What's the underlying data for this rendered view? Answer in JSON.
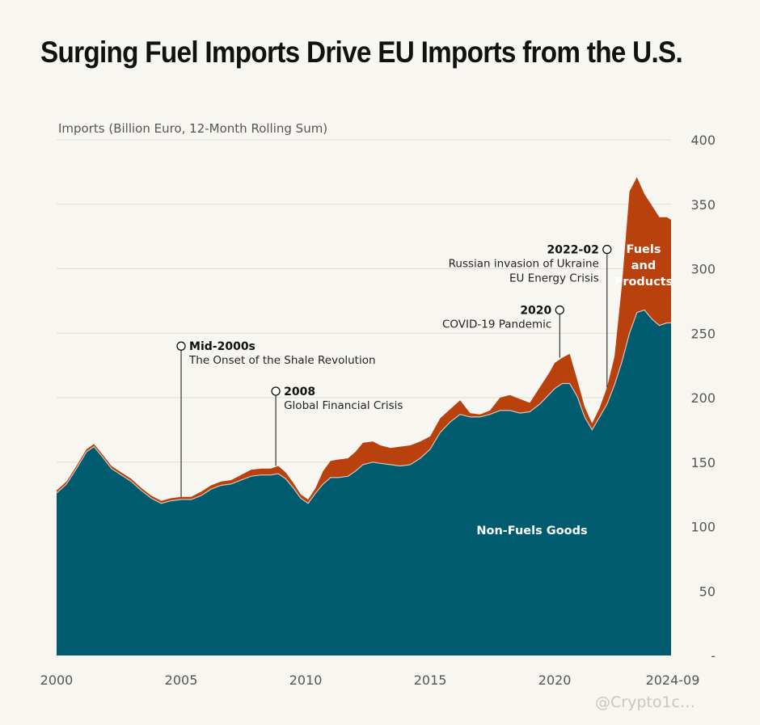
{
  "title": "Surging Fuel Imports Drive EU Imports from the U.S.",
  "watermark": "@Crypto1c…",
  "chart_data": {
    "type": "area",
    "stacked": true,
    "ylabel": "Imports (Billion Euro, 12-Month Rolling Sum)",
    "ylim": [
      0,
      400
    ],
    "y_ticks": [
      {
        "value": 0,
        "label": "-"
      },
      {
        "value": 50,
        "label": "50"
      },
      {
        "value": 100,
        "label": "100"
      },
      {
        "value": 150,
        "label": "150"
      },
      {
        "value": 200,
        "label": "200"
      },
      {
        "value": 250,
        "label": "250"
      },
      {
        "value": 300,
        "label": "300"
      },
      {
        "value": 350,
        "label": "350"
      },
      {
        "value": 400,
        "label": "400"
      }
    ],
    "x_ticks": [
      {
        "value": 2000,
        "label": "2000"
      },
      {
        "value": 2005,
        "label": "2005"
      },
      {
        "value": 2010,
        "label": "2010"
      },
      {
        "value": 2015,
        "label": "2015"
      },
      {
        "value": 2020,
        "label": "2020"
      },
      {
        "value": 2024.67,
        "label": "2024-09"
      }
    ],
    "xlim": [
      2000,
      2024.67
    ],
    "grid": true,
    "x": [
      2000.0,
      2000.4,
      2000.8,
      2001.2,
      2001.5,
      2001.8,
      2002.2,
      2002.6,
      2003.0,
      2003.4,
      2003.8,
      2004.2,
      2004.6,
      2005.0,
      2005.4,
      2005.8,
      2006.2,
      2006.6,
      2007.0,
      2007.4,
      2007.8,
      2008.2,
      2008.6,
      2008.9,
      2009.2,
      2009.5,
      2009.8,
      2010.1,
      2010.4,
      2010.7,
      2011.0,
      2011.3,
      2011.7,
      2012.0,
      2012.3,
      2012.7,
      2013.0,
      2013.4,
      2013.8,
      2014.2,
      2014.6,
      2015.0,
      2015.4,
      2015.8,
      2016.2,
      2016.6,
      2017.0,
      2017.4,
      2017.8,
      2018.2,
      2018.6,
      2019.0,
      2019.4,
      2019.8,
      2020.0,
      2020.3,
      2020.6,
      2020.9,
      2021.2,
      2021.5,
      2021.8,
      2022.1,
      2022.4,
      2022.7,
      2023.0,
      2023.3,
      2023.6,
      2023.9,
      2024.2,
      2024.5,
      2024.67
    ],
    "series": [
      {
        "name": "Non-Fuels Goods",
        "color": "#005b6e",
        "values": [
          126,
          133,
          145,
          158,
          162,
          155,
          145,
          140,
          135,
          128,
          122,
          118,
          120,
          121,
          121,
          124,
          129,
          132,
          133,
          136,
          139,
          140,
          140,
          141,
          137,
          130,
          122,
          118,
          126,
          133,
          138,
          138,
          139,
          143,
          148,
          150,
          149,
          148,
          147,
          148,
          153,
          160,
          173,
          181,
          187,
          185,
          185,
          187,
          190,
          190,
          188,
          189,
          195,
          203,
          207,
          211,
          211,
          201,
          185,
          175,
          185,
          195,
          210,
          228,
          250,
          266,
          268,
          261,
          256,
          258,
          258
        ]
      },
      {
        "name": "Fuels and Products",
        "color": "#b9410d",
        "values": [
          2,
          2,
          2,
          2,
          2,
          2,
          2,
          2,
          2,
          2,
          2,
          2,
          2,
          2,
          2,
          3,
          3,
          3,
          3,
          4,
          5,
          5,
          5,
          6,
          5,
          4,
          3,
          3,
          4,
          10,
          13,
          14,
          14,
          15,
          17,
          16,
          14,
          13,
          15,
          15,
          13,
          10,
          11,
          10,
          11,
          3,
          2,
          3,
          10,
          12,
          11,
          7,
          13,
          17,
          20,
          20,
          23,
          13,
          8,
          5,
          7,
          13,
          22,
          60,
          110,
          105,
          90,
          88,
          84,
          82,
          80
        ]
      }
    ],
    "series_labels": {
      "non_fuels": "Non-Fuels Goods",
      "fuels_line1": "Fuels",
      "fuels_line2": "and",
      "fuels_line3": "Products"
    },
    "annotations": [
      {
        "x": 2005.0,
        "y": 240,
        "head": "Mid-2000s",
        "body": [
          "The Onset of the Shale Revolution"
        ],
        "side": "right"
      },
      {
        "x": 2008.8,
        "y": 205,
        "head": "2008",
        "body": [
          "Global Financial Crisis"
        ],
        "side": "right"
      },
      {
        "x": 2020.2,
        "y": 268,
        "head": "2020",
        "body": [
          "COVID-19 Pandemic"
        ],
        "side": "left"
      },
      {
        "x": 2022.1,
        "y": 315,
        "head": "2022-02",
        "body": [
          "Russian invasion of Ukraine",
          "EU Energy Crisis"
        ],
        "side": "left"
      }
    ]
  }
}
